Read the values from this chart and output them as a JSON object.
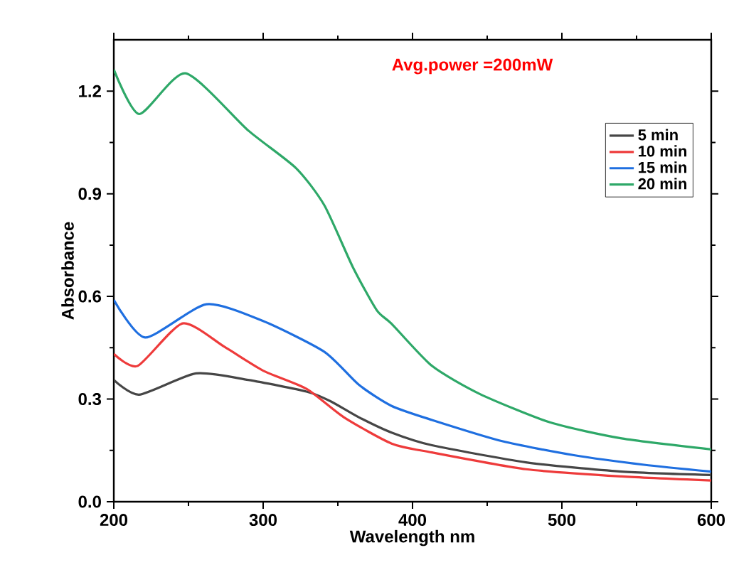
{
  "chart_data": {
    "type": "line",
    "xlabel": "Wavelength nm",
    "ylabel": "Absorbance",
    "annotations": [
      "Avg.power =200mW"
    ],
    "xlim": [
      200,
      600
    ],
    "ylim": [
      0,
      1.35
    ],
    "xticks": [
      200,
      300,
      400,
      500,
      600
    ],
    "yticks": [
      {
        "value": 0,
        "label": "0.0"
      },
      0.3,
      0.6,
      0.9,
      1.2
    ],
    "legend": "top right",
    "grid": false,
    "marker": "none",
    "line_style": "solid",
    "series": [
      {
        "name": "5 min",
        "color": "#464646",
        "x": [
          200,
          217,
          255,
          290,
          329,
          345,
          364,
          386,
          413,
          476,
          540,
          600
        ],
        "values": [
          0.356,
          0.313,
          0.375,
          0.356,
          0.322,
          0.294,
          0.247,
          0.202,
          0.165,
          0.115,
          0.088,
          0.078
        ]
      },
      {
        "name": "10 min",
        "color": "#ee3b3b",
        "x": [
          200,
          216,
          246,
          274,
          300,
          329,
          354,
          386,
          413,
          476,
          540,
          600
        ],
        "values": [
          0.432,
          0.397,
          0.521,
          0.453,
          0.383,
          0.33,
          0.247,
          0.17,
          0.144,
          0.095,
          0.074,
          0.062
        ]
      },
      {
        "name": "15 min",
        "color": "#1f6fe0",
        "x": [
          200,
          221,
          262,
          300,
          341,
          364,
          386,
          413,
          460,
          508,
          555,
          600
        ],
        "values": [
          0.59,
          0.48,
          0.577,
          0.528,
          0.438,
          0.342,
          0.28,
          0.239,
          0.177,
          0.136,
          0.108,
          0.088
        ]
      },
      {
        "name": "20 min",
        "color": "#2ea868",
        "x": [
          200,
          217,
          248,
          290,
          322,
          341,
          360,
          376,
          386,
          413,
          445,
          492,
          540,
          600
        ],
        "values": [
          1.263,
          1.133,
          1.252,
          1.085,
          0.975,
          0.866,
          0.686,
          0.56,
          0.52,
          0.397,
          0.315,
          0.232,
          0.185,
          0.153
        ]
      }
    ]
  }
}
